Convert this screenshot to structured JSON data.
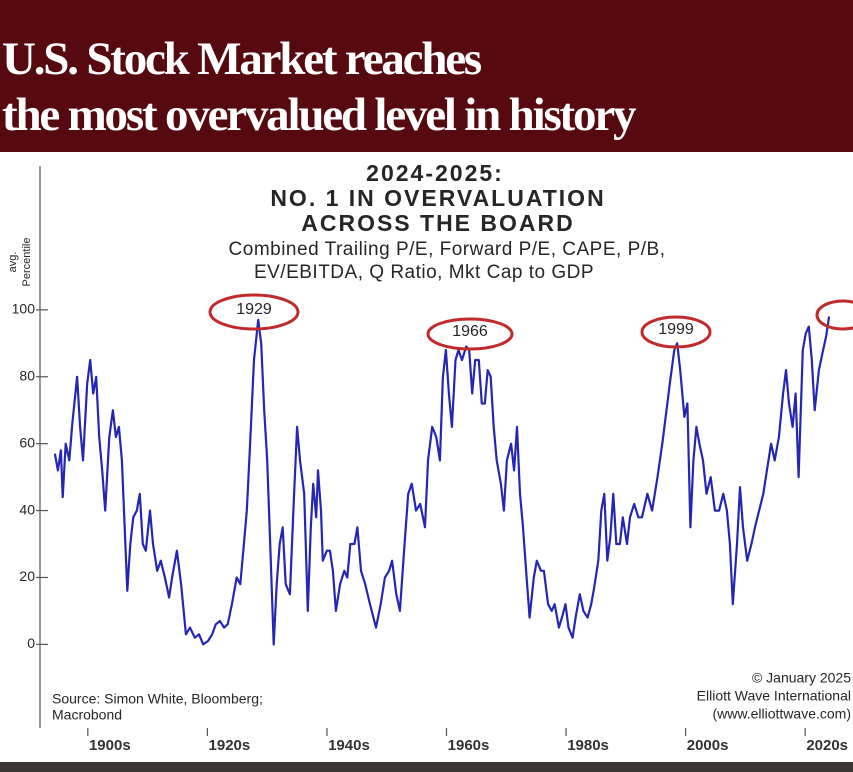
{
  "header": {
    "title_lines": [
      "U.S. Stock Market reaches",
      "the most overvalued level in history"
    ]
  },
  "chart_data": {
    "type": "line",
    "title_lines": [
      "2024-2025:",
      "NO. 1 IN OVERVALUATION",
      "ACROSS THE BOARD"
    ],
    "subtitle_lines": [
      "Combined Trailing P/E, Forward P/E, CAPE, P/B,",
      "EV/EBITDA, Q Ratio, Mkt Cap to GDP"
    ],
    "y_label_lines": [
      "avg.",
      "Percentile"
    ],
    "source_lines": [
      "Source: Simon White, Bloomberg;",
      "Macrobond"
    ],
    "credit_lines": [
      "© January 2025",
      "Elliott Wave International",
      "(www.elliottwave.com)"
    ],
    "annotations": [
      "1929",
      "1966",
      "1999"
    ],
    "color": "#2626b5",
    "xlim": [
      1892,
      2028
    ],
    "xticks": [
      {
        "value": 1900,
        "label": "1900s"
      },
      {
        "value": 1920,
        "label": "1920s"
      },
      {
        "value": 1940,
        "label": "1940s"
      },
      {
        "value": 1960,
        "label": "1960s"
      },
      {
        "value": 1980,
        "label": "1980s"
      },
      {
        "value": 2000,
        "label": "2000s"
      },
      {
        "value": 2020,
        "label": "2020s"
      }
    ],
    "ylim": [
      -25,
      143
    ],
    "yticks": [
      0,
      20,
      40,
      60,
      80,
      100
    ],
    "x": [
      1894.5,
      1895.0,
      1895.5,
      1895.8,
      1896.3,
      1896.9,
      1897.4,
      1898.2,
      1898.7,
      1899.2,
      1899.9,
      1900.4,
      1900.9,
      1901.4,
      1901.9,
      1902.4,
      1902.9,
      1903.6,
      1904.2,
      1904.7,
      1905.2,
      1905.7,
      1906.6,
      1907.1,
      1907.6,
      1908.2,
      1908.7,
      1909.2,
      1909.7,
      1910.4,
      1910.9,
      1911.6,
      1912.2,
      1912.9,
      1913.6,
      1914.1,
      1914.9,
      1915.6,
      1916.4,
      1917.1,
      1917.9,
      1918.6,
      1919.3,
      1920.1,
      1920.8,
      1921.4,
      1922.1,
      1922.8,
      1923.4,
      1924.1,
      1924.9,
      1925.5,
      1926.0,
      1926.6,
      1927.1,
      1927.8,
      1928.5,
      1929.0,
      1929.5,
      1930.0,
      1930.5,
      1931.1,
      1931.6,
      1932.1,
      1932.6,
      1933.1,
      1933.8,
      1934.5,
      1935.0,
      1935.5,
      1936.2,
      1936.8,
      1937.3,
      1937.7,
      1938.2,
      1938.5,
      1939.0,
      1939.3,
      1940.0,
      1940.5,
      1941.0,
      1941.5,
      1942.2,
      1942.9,
      1943.4,
      1943.9,
      1944.6,
      1945.1,
      1945.7,
      1946.4,
      1947.2,
      1948.2,
      1949.0,
      1949.7,
      1950.4,
      1950.9,
      1951.6,
      1952.2,
      1952.9,
      1953.6,
      1954.2,
      1954.9,
      1955.6,
      1956.4,
      1956.9,
      1957.6,
      1958.3,
      1958.9,
      1959.4,
      1959.9,
      1960.4,
      1960.9,
      1961.5,
      1962.0,
      1962.6,
      1963.3,
      1963.8,
      1964.3,
      1964.8,
      1965.4,
      1965.9,
      1966.4,
      1966.9,
      1967.4,
      1967.9,
      1968.4,
      1969.1,
      1969.6,
      1970.1,
      1970.8,
      1971.3,
      1971.8,
      1972.3,
      1972.8,
      1973.4,
      1973.9,
      1974.6,
      1975.1,
      1975.8,
      1976.3,
      1977.0,
      1977.6,
      1978.1,
      1978.8,
      1979.3,
      1979.9,
      1980.4,
      1981.1,
      1981.6,
      1982.3,
      1982.9,
      1983.6,
      1984.2,
      1984.7,
      1985.4,
      1985.9,
      1986.4,
      1986.9,
      1987.4,
      1987.9,
      1988.4,
      1989.0,
      1989.5,
      1990.2,
      1990.7,
      1991.4,
      1992.1,
      1992.7,
      1993.6,
      1994.4,
      1995.3,
      1996.1,
      1996.8,
      1997.5,
      1998.1,
      1998.6,
      1999.1,
      1999.8,
      2000.3,
      2000.8,
      2001.3,
      2001.8,
      2002.3,
      2002.9,
      2003.5,
      2004.2,
      2004.9,
      2005.6,
      2006.3,
      2006.9,
      2007.4,
      2007.9,
      2008.6,
      2009.1,
      2009.6,
      2010.3,
      2011.0,
      2011.6,
      2012.3,
      2013.0,
      2013.6,
      2014.3,
      2014.9,
      2015.6,
      2016.3,
      2016.8,
      2017.3,
      2017.9,
      2018.4,
      2018.9,
      2019.6,
      2020.1,
      2020.6,
      2021.1,
      2021.6,
      2022.3,
      2023.0,
      2023.5,
      2024.0
    ],
    "values": [
      57,
      52,
      58,
      44,
      60,
      55,
      66,
      80,
      65,
      55,
      78,
      85,
      75,
      80,
      62,
      52,
      40,
      62,
      70,
      62,
      65,
      55,
      16,
      30,
      38,
      40,
      45,
      30,
      28,
      40,
      30,
      22,
      25,
      20,
      14,
      20,
      28,
      18,
      3,
      5,
      2,
      3,
      0,
      1,
      3,
      6,
      7,
      5,
      6,
      12,
      20,
      18,
      28,
      40,
      58,
      85,
      97,
      90,
      70,
      55,
      30,
      0,
      18,
      30,
      35,
      18,
      15,
      45,
      65,
      55,
      45,
      10,
      35,
      48,
      38,
      52,
      40,
      25,
      28,
      28,
      22,
      10,
      18,
      22,
      20,
      30,
      30,
      35,
      22,
      18,
      12,
      5,
      12,
      20,
      22,
      25,
      15,
      10,
      28,
      45,
      48,
      40,
      42,
      35,
      55,
      65,
      62,
      55,
      80,
      88,
      75,
      65,
      85,
      88,
      85,
      89,
      88,
      75,
      85,
      85,
      72,
      72,
      82,
      80,
      65,
      55,
      48,
      40,
      55,
      60,
      52,
      65,
      45,
      35,
      20,
      8,
      20,
      25,
      22,
      22,
      12,
      10,
      12,
      5,
      8,
      12,
      5,
      2,
      8,
      15,
      10,
      8,
      12,
      17,
      25,
      40,
      45,
      25,
      32,
      45,
      30,
      30,
      38,
      30,
      38,
      42,
      38,
      38,
      45,
      40,
      50,
      60,
      70,
      80,
      88,
      90,
      82,
      68,
      72,
      35,
      55,
      65,
      60,
      55,
      45,
      50,
      40,
      40,
      45,
      40,
      30,
      12,
      30,
      47,
      35,
      25,
      30,
      35,
      40,
      45,
      52,
      60,
      55,
      62,
      75,
      82,
      72,
      65,
      75,
      50,
      88,
      93,
      95,
      85,
      70,
      82,
      88,
      92,
      98
    ]
  }
}
